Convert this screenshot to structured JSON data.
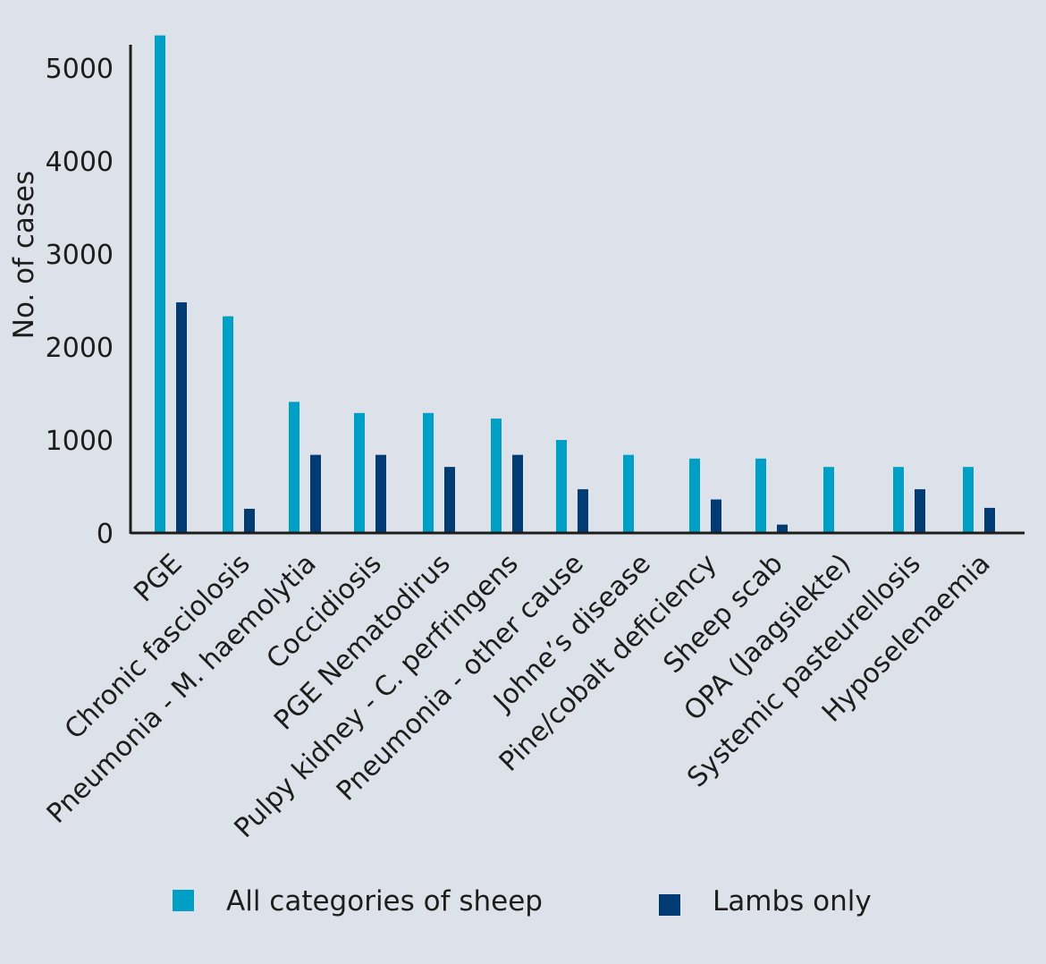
{
  "chart_data": {
    "type": "bar",
    "title": "",
    "xlabel": "",
    "ylabel": "No. of cases",
    "ylim": [
      0,
      5300
    ],
    "yticks": [
      0,
      1000,
      2000,
      3000,
      4000,
      5000
    ],
    "grid": false,
    "legend_position": "bottom",
    "categories": [
      "PGE",
      "Chronic fasciolosis",
      "Pneumonia - M. haemolytia",
      "Coccidiosis",
      "PGE Nematodirus",
      "Pulpy kidney - C. perfringens",
      "Pneumonia - other cause",
      "Johne’s disease",
      "Pine/cobalt deficiency",
      "Sheep scab",
      "OPA (Jaagsiekte)",
      "Systemic pasteurellosis",
      "Hyposelenaemia"
    ],
    "series": [
      {
        "name": "All categories of sheep",
        "color": "#00a0c6",
        "values": [
          5350,
          2330,
          1410,
          1290,
          1290,
          1230,
          1000,
          840,
          800,
          800,
          710,
          710,
          710
        ]
      },
      {
        "name": "Lambs only",
        "color": "#003b73",
        "values": [
          2480,
          260,
          840,
          840,
          710,
          840,
          470,
          0,
          360,
          90,
          0,
          470,
          270
        ]
      }
    ]
  }
}
